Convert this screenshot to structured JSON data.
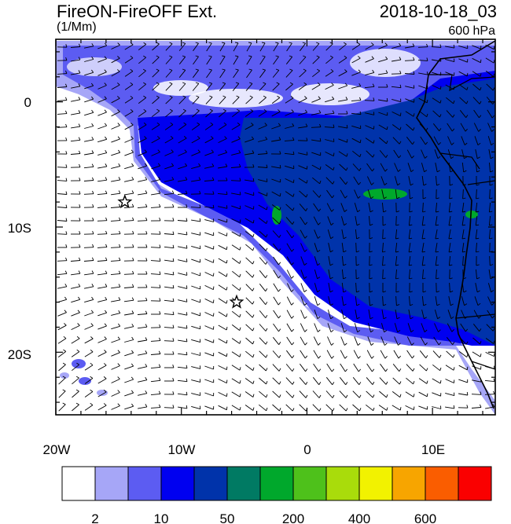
{
  "header": {
    "title": "FireON-FireOFF Ext.",
    "units": "(1/Mm)",
    "datetime": "2018-10-18_03",
    "level": "600 hPa"
  },
  "map": {
    "lon_range": [
      -20,
      15
    ],
    "lat_range": [
      -25,
      5
    ],
    "x_ticks": [
      "20W",
      "10W",
      "0",
      "10E"
    ],
    "y_ticks": [
      "0",
      "10S",
      "20S"
    ],
    "markers": [
      {
        "name": "star",
        "lon": -14.5,
        "lat": -8.0
      },
      {
        "name": "star",
        "lon": -5.6,
        "lat": -16.0
      }
    ]
  },
  "colorbar": {
    "colors": [
      "#ffffff",
      "#a6a6f7",
      "#5c5cf2",
      "#0000f0",
      "#0033aa",
      "#007a63",
      "#00a82c",
      "#4ec11b",
      "#a9dc0b",
      "#f2f200",
      "#f7a500",
      "#fa5d00",
      "#fa0000"
    ],
    "labels": [
      {
        "text": "2",
        "boundary": 1
      },
      {
        "text": "10",
        "boundary": 3
      },
      {
        "text": "50",
        "boundary": 5
      },
      {
        "text": "200",
        "boundary": 7
      },
      {
        "text": "400",
        "boundary": 9
      },
      {
        "text": "600",
        "boundary": 11
      }
    ]
  }
}
